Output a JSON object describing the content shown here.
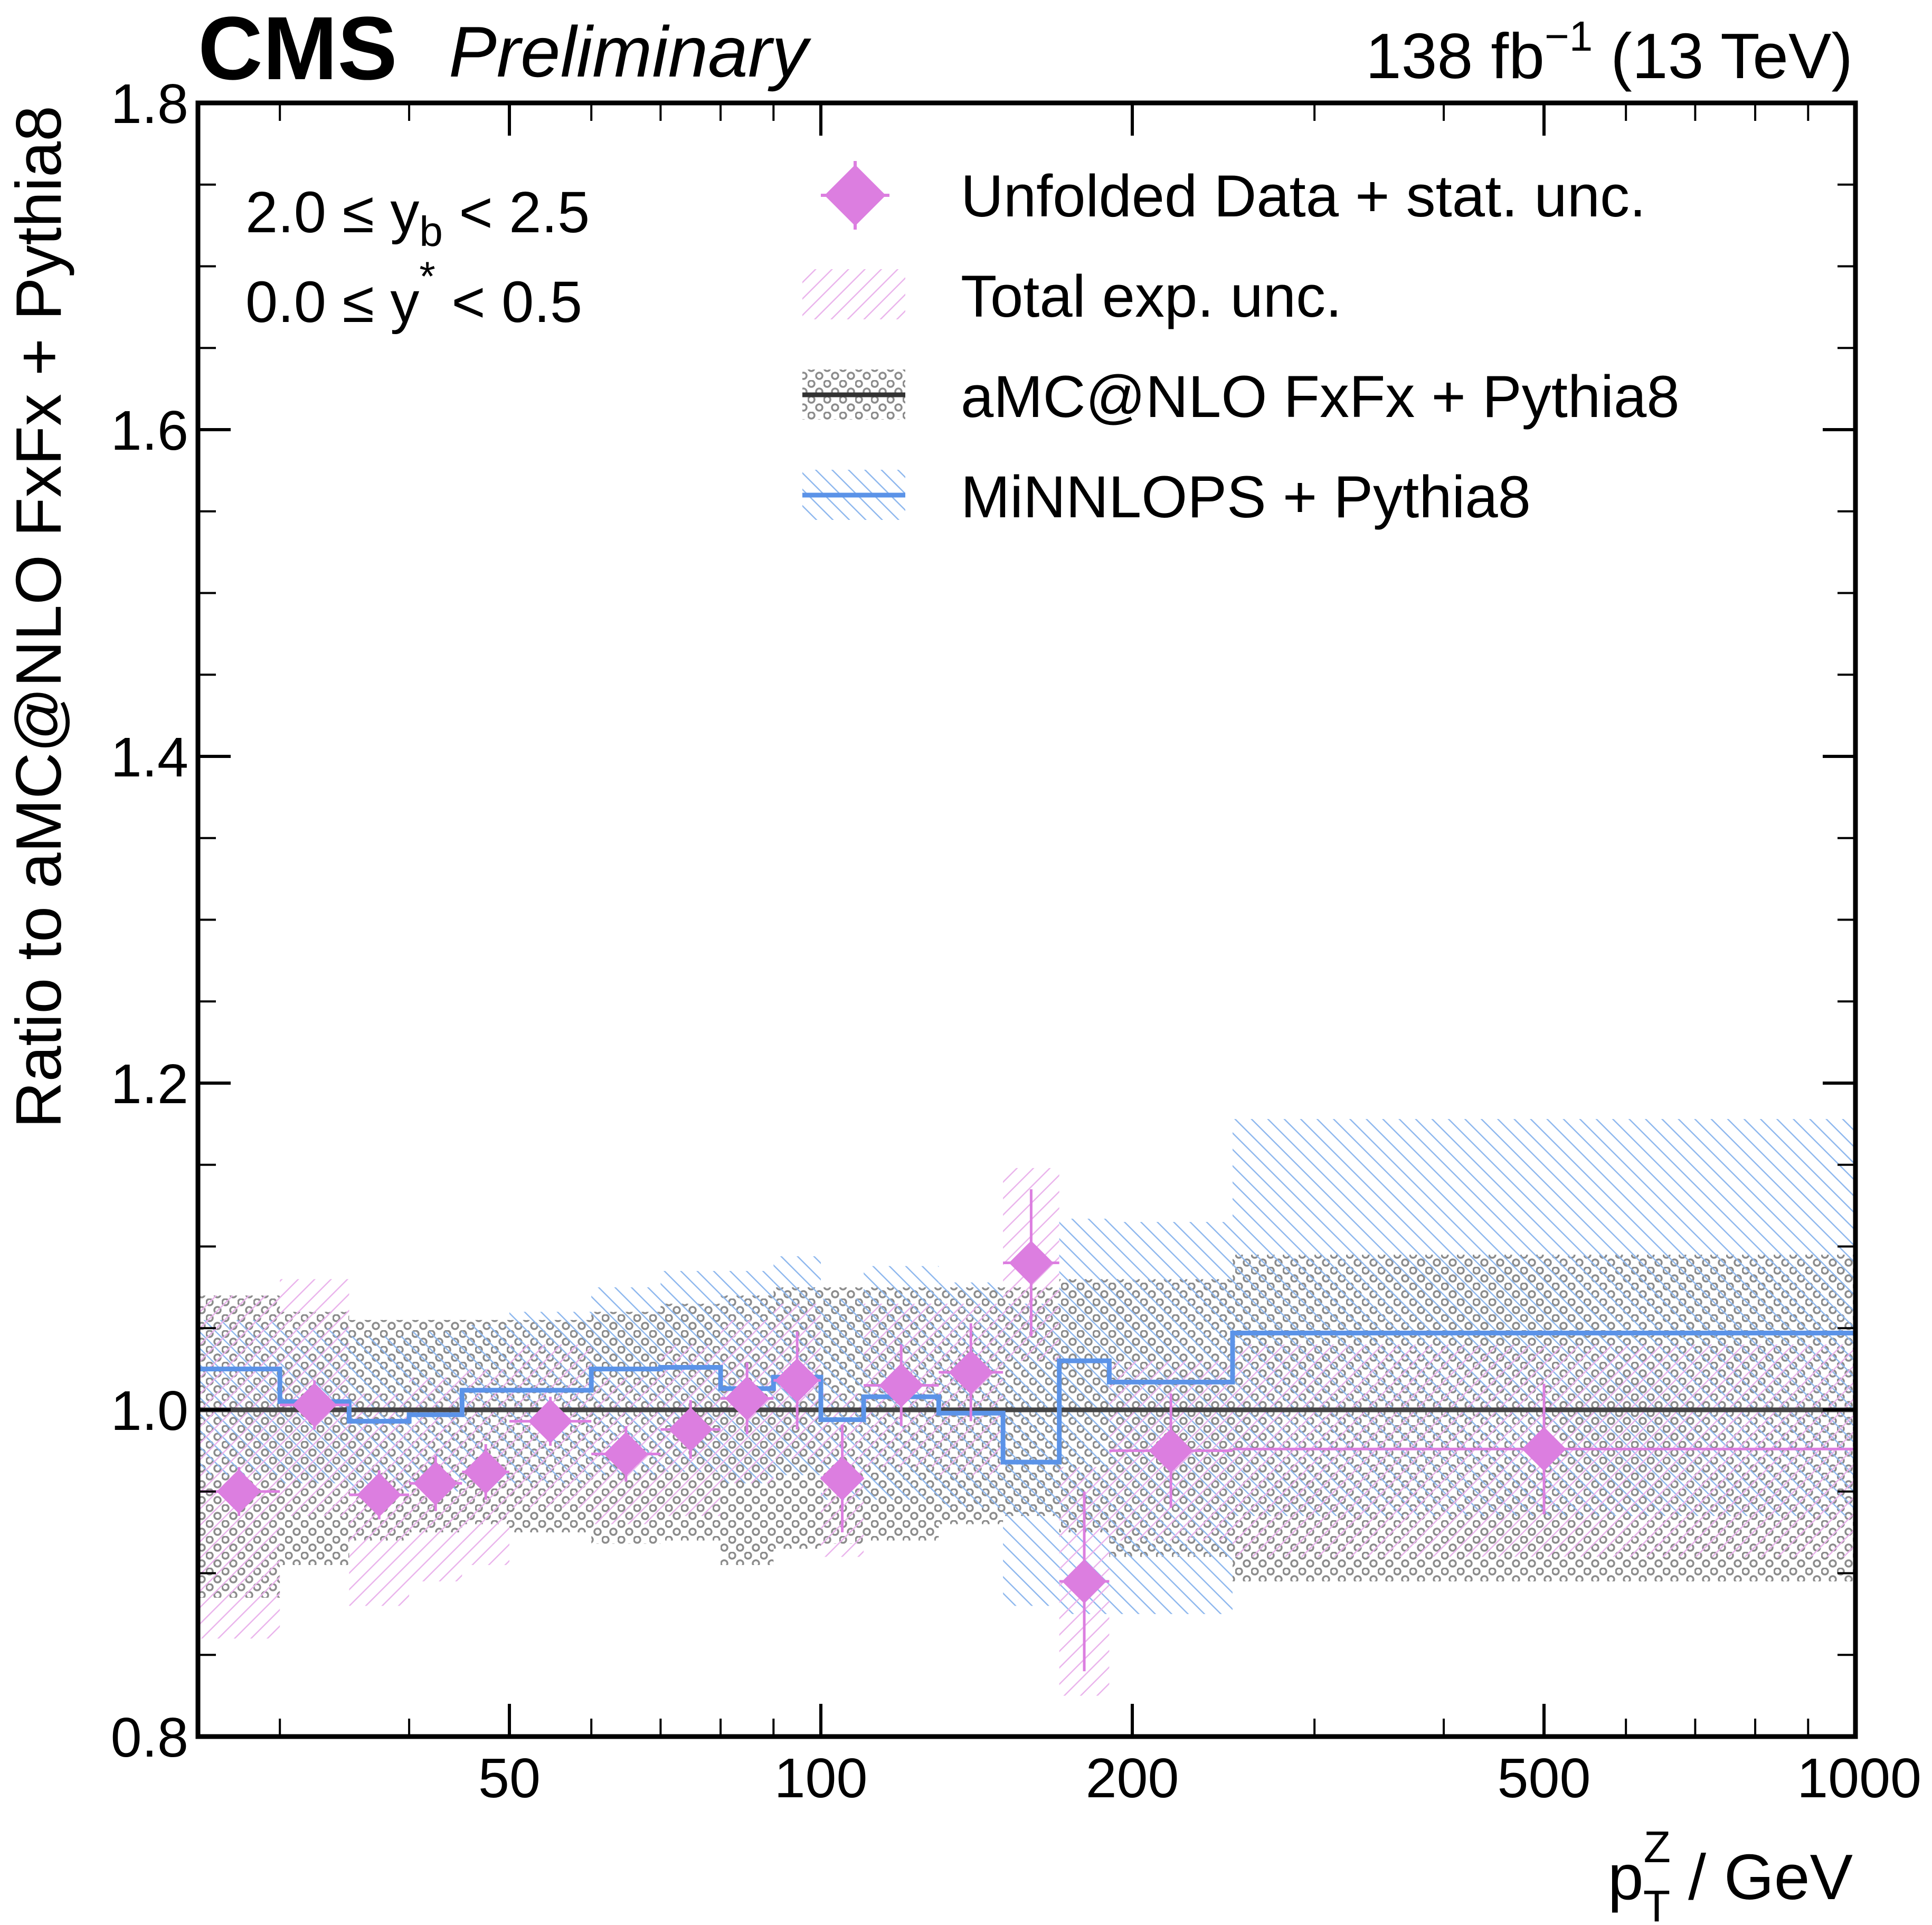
{
  "header": {
    "experiment": "CMS",
    "status": "Preliminary",
    "lumi_value": "138 fb",
    "lumi_exp": "−1",
    "energy": " (13 TeV)"
  },
  "annotations": {
    "yb_range": "2.0 ≤ y",
    "yb_sub": "b",
    "yb_upper": " < 2.5",
    "ystar_range": "0.0 ≤ y",
    "ystar_sup": "*",
    "ystar_upper": " < 0.5"
  },
  "axes": {
    "xlabel_base": "p",
    "xlabel_sup": "Z",
    "xlabel_sub": "T",
    "xlabel_rest": " / GeV",
    "ylabel": "Ratio to aMC@NLO FxFx + Pythia8"
  },
  "colors": {
    "data": "#dc7ee0",
    "nlo": "#444444",
    "nlo_band": "#8c8c8c",
    "minnlo": "#5b93e8",
    "minnlo_band": "#8fb8ee"
  },
  "legend": {
    "items": [
      {
        "key": "data",
        "label": "Unfolded Data + stat. unc."
      },
      {
        "key": "expunc",
        "label": "Total exp. unc."
      },
      {
        "key": "nlo",
        "label": "aMC@NLO FxFx + Pythia8"
      },
      {
        "key": "minnlo",
        "label": "MiNNLOPS + Pythia8"
      }
    ]
  },
  "chart_data": {
    "type": "step",
    "title": "",
    "xlabel": "pT^Z / GeV",
    "ylabel": "Ratio to aMC@NLO FxFx + Pythia8",
    "xscale": "log",
    "xlim": [
      25,
      1000
    ],
    "ylim": [
      0.8,
      1.8
    ],
    "xticks": [
      {
        "value": 50,
        "label": "50"
      },
      {
        "value": 100,
        "label": "100"
      },
      {
        "value": 200,
        "label": "200"
      },
      {
        "value": 500,
        "label": "500"
      },
      {
        "value": 1000,
        "label": "1000"
      }
    ],
    "yticks": [
      {
        "value": 0.8,
        "label": "0.8"
      },
      {
        "value": 1.0,
        "label": "1.0"
      },
      {
        "value": 1.2,
        "label": "1.2"
      },
      {
        "value": 1.4,
        "label": "1.4"
      },
      {
        "value": 1.6,
        "label": "1.6"
      },
      {
        "value": 1.8,
        "label": "1.8"
      }
    ],
    "bin_edges": [
      25,
      30,
      35,
      40,
      45,
      50,
      60,
      70,
      80,
      90,
      100,
      110,
      130,
      150,
      170,
      190,
      250,
      1000
    ],
    "series": [
      {
        "name": "Unfolded Data + stat. unc.",
        "values": [
          0.95,
          1.003,
          0.948,
          0.955,
          0.962,
          0.993,
          0.973,
          0.988,
          1.007,
          1.018,
          0.958,
          1.015,
          1.023,
          1.09,
          0.895,
          0.975,
          0.976
        ],
        "stat_unc": [
          0.015,
          0.015,
          0.015,
          0.017,
          0.017,
          0.015,
          0.017,
          0.018,
          0.022,
          0.03,
          0.033,
          0.025,
          0.03,
          0.045,
          0.055,
          0.035,
          0.04
        ],
        "exp_unc_low": [
          0.86,
          0.935,
          0.88,
          0.895,
          0.905,
          0.94,
          0.93,
          0.935,
          0.955,
          0.97,
          0.91,
          0.965,
          0.96,
          1.03,
          0.825,
          0.92,
          0.91
        ],
        "exp_unc_high": [
          1.07,
          1.08,
          1.01,
          1.02,
          1.025,
          1.04,
          1.02,
          1.04,
          1.055,
          1.065,
          1.01,
          1.065,
          1.065,
          1.148,
          0.965,
          1.03,
          1.04
        ]
      },
      {
        "name": "aMC@NLO FxFx + Pythia8",
        "values": [
          1.0,
          1.0,
          1.0,
          1.0,
          1.0,
          1.0,
          1.0,
          1.0,
          1.0,
          1.0,
          1.0,
          1.0,
          1.0,
          1.0,
          1.0,
          1.0,
          1.0
        ],
        "band_low": [
          0.885,
          0.905,
          0.92,
          0.925,
          0.93,
          0.925,
          0.918,
          0.92,
          0.905,
          0.915,
          0.918,
          0.92,
          0.93,
          0.935,
          0.925,
          0.91,
          0.895
        ],
        "band_high": [
          1.07,
          1.06,
          1.055,
          1.055,
          1.055,
          1.055,
          1.06,
          1.065,
          1.07,
          1.075,
          1.075,
          1.075,
          1.075,
          1.075,
          1.08,
          1.08,
          1.095
        ]
      },
      {
        "name": "MiNNLOPS + Pythia8",
        "values": [
          1.025,
          1.005,
          0.993,
          0.997,
          1.012,
          1.012,
          1.025,
          1.026,
          1.013,
          1.02,
          0.994,
          1.008,
          0.998,
          0.968,
          1.03,
          1.017,
          1.047
        ],
        "band_low": [
          0.96,
          0.955,
          0.95,
          0.95,
          0.955,
          0.955,
          0.96,
          0.962,
          0.955,
          0.96,
          0.945,
          0.945,
          0.94,
          0.88,
          0.875,
          0.875,
          0.935
        ],
        "band_high": [
          1.055,
          1.05,
          1.045,
          1.048,
          1.052,
          1.06,
          1.075,
          1.085,
          1.085,
          1.094,
          1.068,
          1.088,
          1.078,
          1.065,
          1.117,
          1.115,
          1.178
        ]
      }
    ],
    "legend_position": "top-right",
    "grid": false
  }
}
